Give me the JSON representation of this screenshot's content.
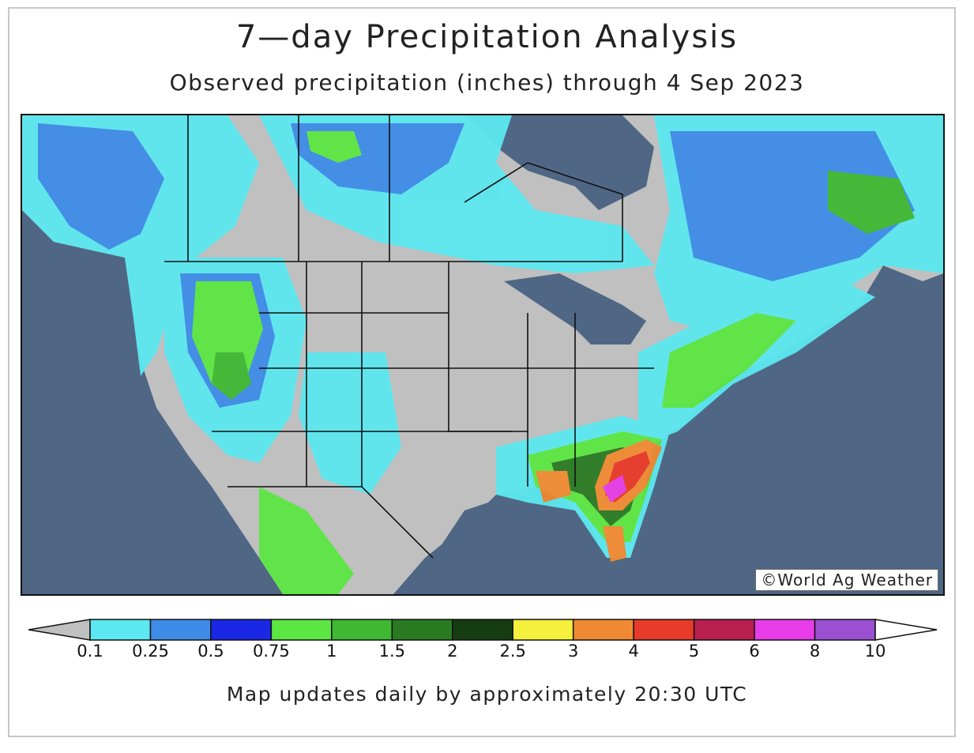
{
  "title": "7—day Precipitation Analysis",
  "subtitle": "Observed precipitation (inches) through 4 Sep 2023",
  "credit": "©World Ag Weather",
  "footer": "Map updates daily by approximately 20:30 UTC",
  "legend": {
    "ticks": [
      "0.1",
      "0.25",
      "0.5",
      "0.75",
      "1",
      "1.5",
      "2",
      "2.5",
      "3",
      "4",
      "5",
      "6",
      "8",
      "10"
    ],
    "colors": {
      "below": "#c0c0c0",
      "bins": [
        "#5ce8f0",
        "#3e8ce8",
        "#1a28e6",
        "#5ce642",
        "#3fb832",
        "#2a7a22",
        "#163c12",
        "#f5f03c",
        "#f08a32",
        "#e83a28",
        "#b81e50",
        "#e83ce8",
        "#9a50d0"
      ],
      "above": "#ffffff"
    }
  },
  "map": {
    "ocean_color": "#4f6784",
    "land_dry_color": "#c0c0c0"
  }
}
